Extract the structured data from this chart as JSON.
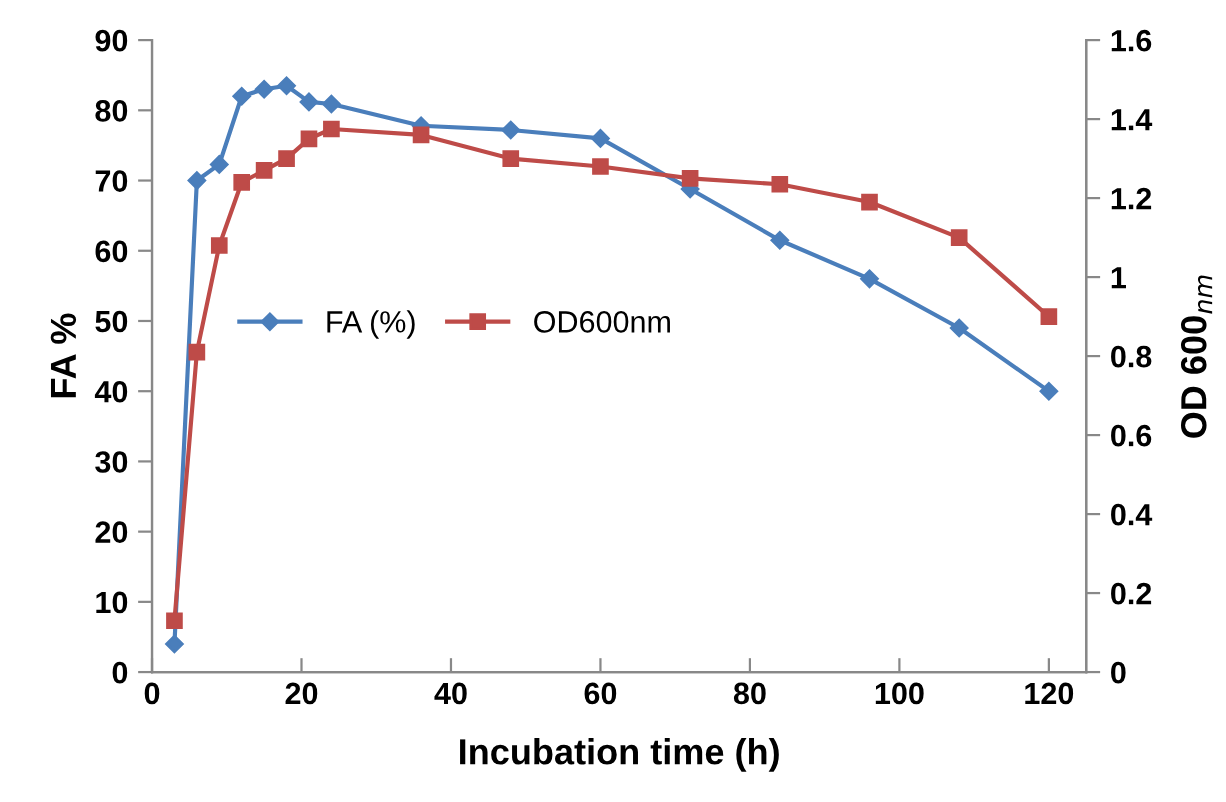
{
  "chart_data": {
    "type": "line",
    "xlabel": "Incubation time (h)",
    "ylabel": "FA %",
    "y2label": "OD 600$_{nm}$",
    "x": [
      3,
      6,
      9,
      12,
      15,
      18,
      21,
      24,
      36,
      48,
      60,
      72,
      84,
      96,
      108,
      120
    ],
    "series": [
      {
        "name": "FA (%)",
        "color": "#4a7ebb",
        "marker": "diamond",
        "values": [
          4,
          70,
          72.3,
          82,
          83,
          83.5,
          81.2,
          80.9,
          77.8,
          77.2,
          76,
          68.8,
          61.5,
          56,
          49,
          40
        ]
      },
      {
        "name": "OD600nm",
        "color": "#be4b48",
        "marker": "square",
        "axis": "y2",
        "values": [
          0.13,
          0.81,
          1.08,
          1.24,
          1.27,
          1.3,
          1.35,
          1.375,
          1.36,
          1.3,
          1.28,
          1.25,
          1.235,
          1.19,
          1.1,
          0.9
        ]
      }
    ],
    "xlim": [
      0,
      125
    ],
    "xticks": [
      0,
      20,
      40,
      60,
      80,
      100,
      120
    ],
    "ylim": [
      0,
      90
    ],
    "yticks": [
      0,
      10,
      20,
      30,
      40,
      50,
      60,
      70,
      80,
      90
    ],
    "y2lim": [
      0,
      1.6
    ],
    "y2ticks": [
      0,
      0.2,
      0.4,
      0.6,
      0.8,
      {
        "value": 1,
        "label": "1"
      },
      1.2,
      1.4,
      1.6
    ],
    "grid": false,
    "legend": "center",
    "line_style": "solid"
  }
}
